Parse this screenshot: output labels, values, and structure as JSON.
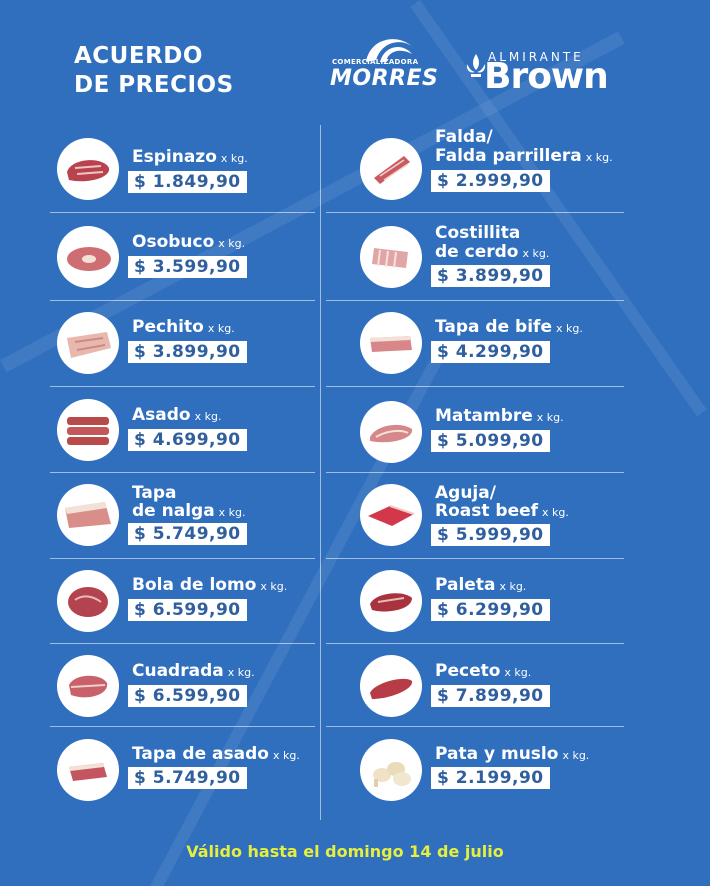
{
  "title": {
    "line1": "ACUERDO",
    "line2": "DE PRECIOS"
  },
  "logos": {
    "morres": {
      "small": "COMERCIALIZADORA",
      "big": "MORRES"
    },
    "brown": {
      "small": "ALMIRANTE",
      "big": "Brown"
    }
  },
  "unit": "x kg.",
  "items": {
    "espinazo": {
      "line1": "Espinazo",
      "price": "$ 1.849,90"
    },
    "osobuco": {
      "line1": "Osobuco",
      "price": "$ 3.599,90"
    },
    "pechito": {
      "line1": "Pechito",
      "price": "$ 3.899,90"
    },
    "asado": {
      "line1": "Asado",
      "price": "$ 4.699,90"
    },
    "tapa_nalga": {
      "line1": "Tapa",
      "line2": "de nalga",
      "price": "$ 5.749,90"
    },
    "bola_lomo": {
      "line1": "Bola de lomo",
      "price": "$ 6.599,90"
    },
    "cuadrada": {
      "line1": "Cuadrada",
      "price": "$ 6.599,90"
    },
    "tapa_asado": {
      "line1": "Tapa de asado",
      "price": "$ 5.749,90"
    },
    "falda": {
      "line1": "Falda/",
      "line2": "Falda parrillera",
      "price": "$ 2.999,90"
    },
    "costillita": {
      "line1": "Costillita",
      "line2": "de cerdo",
      "price": "$ 3.899,90"
    },
    "tapa_bife": {
      "line1": "Tapa de bife",
      "price": "$ 4.299,90"
    },
    "matambre": {
      "line1": "Matambre",
      "price": "$ 5.099,90"
    },
    "aguja": {
      "line1": "Aguja/",
      "line2": "Roast beef",
      "price": "$ 5.999,90"
    },
    "paleta": {
      "line1": "Paleta",
      "price": "$ 6.299,90"
    },
    "peceto": {
      "line1": "Peceto",
      "price": "$ 7.899,90"
    },
    "pata_muslo": {
      "line1": "Pata y muslo",
      "price": "$ 2.199,90"
    }
  },
  "footer": "Válido hasta el domingo 14 de julio",
  "colors": {
    "background": "#2f6fbe",
    "price_text": "#2f5f9e",
    "footer_text": "#e6ef3d"
  }
}
